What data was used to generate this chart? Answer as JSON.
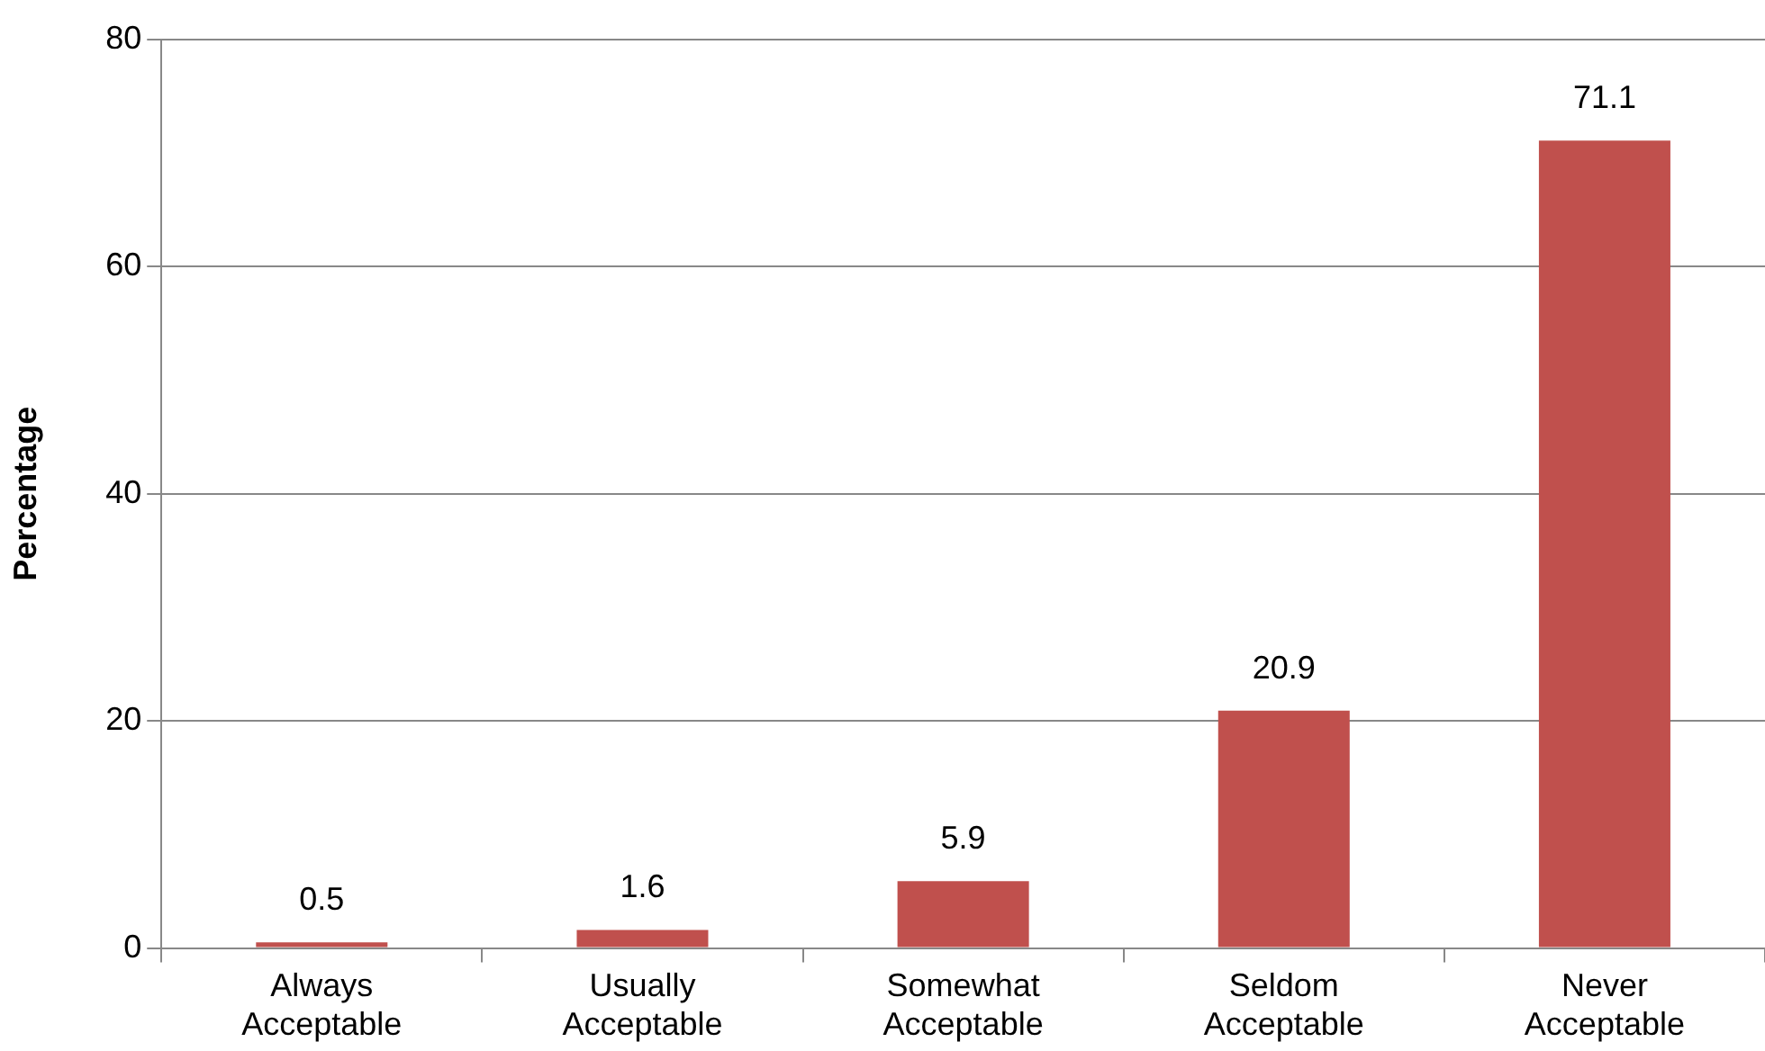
{
  "chart_data": {
    "type": "bar",
    "ylabel": "Percentage",
    "categories": [
      "Always Acceptable",
      "Usually Acceptable",
      "Somewhat Acceptable",
      "Seldom Acceptable",
      "Never Acceptable"
    ],
    "values": [
      0.5,
      1.6,
      5.9,
      20.9,
      71.1
    ],
    "color": "#c0504d",
    "ylim": [
      0,
      80
    ],
    "yticks": [
      0,
      20,
      40,
      60,
      80
    ],
    "grid": "y",
    "data_labels": true
  }
}
